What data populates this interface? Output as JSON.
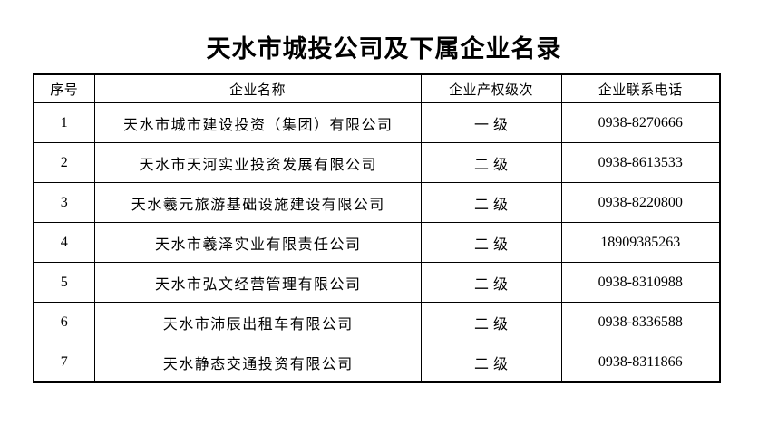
{
  "document": {
    "title": "天水市城投公司及下属企业名录"
  },
  "table": {
    "headers": [
      "序号",
      "企业名称",
      "企业产权级次",
      "企业联系电话"
    ],
    "rows": [
      {
        "no": "1",
        "name": "天水市城市建设投资（集团）有限公司",
        "level": "一级",
        "phone": "0938-8270666"
      },
      {
        "no": "2",
        "name": "天水市天河实业投资发展有限公司",
        "level": "二级",
        "phone": "0938-8613533"
      },
      {
        "no": "3",
        "name": "天水羲元旅游基础设施建设有限公司",
        "level": "二级",
        "phone": "0938-8220800"
      },
      {
        "no": "4",
        "name": "天水市羲泽实业有限责任公司",
        "level": "二级",
        "phone": "18909385263"
      },
      {
        "no": "5",
        "name": "天水市弘文经营管理有限公司",
        "level": "二级",
        "phone": "0938-8310988"
      },
      {
        "no": "6",
        "name": "天水市沛辰出租车有限公司",
        "level": "二级",
        "phone": "0938-8336588"
      },
      {
        "no": "7",
        "name": "天水静态交通投资有限公司",
        "level": "二级",
        "phone": "0938-8311866"
      }
    ]
  },
  "colors": {
    "text": "#000000",
    "border": "#000000",
    "background": "#ffffff"
  }
}
